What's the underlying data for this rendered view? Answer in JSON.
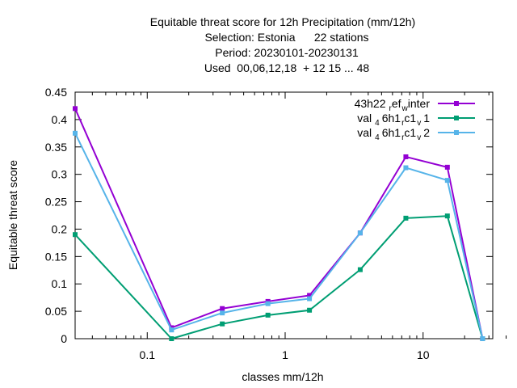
{
  "chart_data": {
    "type": "line",
    "title_lines": [
      "Equitable threat score  for 12h Precipitation (mm/12h)",
      "Selection: Estonia      22 stations",
      "Period: 20230101-20230131",
      "Used  00,06,12,18  + 12 15 ... 48"
    ],
    "xlabel": "classes mm/12h",
    "ylabel": "Equitable threat score",
    "xscale": "log",
    "xlim": [
      0.03,
      32
    ],
    "ylim": [
      0,
      0.45
    ],
    "x_ticks": [
      {
        "value": 0.1,
        "label": "0.1"
      },
      {
        "value": 1,
        "label": "1"
      },
      {
        "value": 10,
        "label": "10"
      }
    ],
    "y_ticks": [
      {
        "value": 0,
        "label": "0"
      },
      {
        "value": 0.05,
        "label": "0.05"
      },
      {
        "value": 0.1,
        "label": "0.1"
      },
      {
        "value": 0.15,
        "label": "0.15"
      },
      {
        "value": 0.2,
        "label": "0.2"
      },
      {
        "value": 0.25,
        "label": "0.25"
      },
      {
        "value": 0.3,
        "label": "0.3"
      },
      {
        "value": 0.35,
        "label": "0.35"
      },
      {
        "value": 0.4,
        "label": "0.4"
      },
      {
        "value": 0.45,
        "label": "0.45"
      }
    ],
    "x": [
      0.03,
      0.15,
      0.35,
      0.75,
      1.5,
      3.5,
      7.5,
      15,
      27
    ],
    "legend_position": "top-right",
    "grid": false,
    "series": [
      {
        "name": "43h22_ref_winter",
        "name_parts": {
          "a": "43h22",
          "b": "r",
          "c": "ef",
          "d": "w",
          "e": "inter"
        },
        "color": "#9400d3",
        "values": [
          0.42,
          0.02,
          0.055,
          0.068,
          0.079,
          0.193,
          0.332,
          0.313,
          0.0
        ]
      },
      {
        "name": "val_46h1_rc1_v1",
        "name_parts": {
          "a": "val",
          "b": "4",
          "c": "6h1",
          "d": "r",
          "e": "c1",
          "f": "v",
          "g": "1"
        },
        "color": "#009e73",
        "values": [
          0.19,
          0.0,
          0.027,
          0.043,
          0.052,
          0.126,
          0.22,
          0.224,
          0.0
        ]
      },
      {
        "name": "val_46h1_rc1_v2",
        "name_parts": {
          "a": "val",
          "b": "4",
          "c": "6h1",
          "d": "r",
          "e": "c1",
          "f": "v",
          "g": "2"
        },
        "color": "#56b4e9",
        "values": [
          0.375,
          0.016,
          0.047,
          0.064,
          0.073,
          0.193,
          0.312,
          0.289,
          0.0
        ]
      }
    ]
  }
}
